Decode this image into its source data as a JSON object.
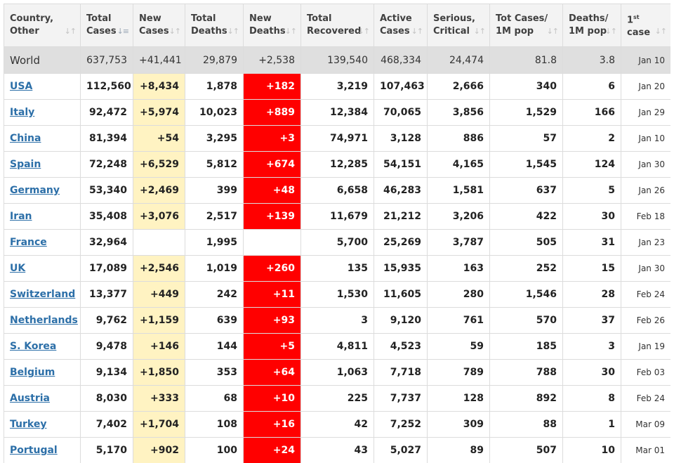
{
  "colors": {
    "new_cases_bg": "#fff3c2",
    "new_deaths_bg": "#ff0000",
    "link": "#2c6fa8",
    "world_bg": "#dfdfdf",
    "header_bg": "#f3f3f3"
  },
  "headers": [
    {
      "line1": "Country,",
      "line2": "Other",
      "sort_icon": "sort-both-icon"
    },
    {
      "line1": "Total",
      "line2": "Cases",
      "sort_icon": "sort-desc-icon",
      "active": true
    },
    {
      "line1": "New",
      "line2": "Cases",
      "sort_icon": "sort-both-icon"
    },
    {
      "line1": "Total",
      "line2": "Deaths",
      "sort_icon": "sort-both-icon"
    },
    {
      "line1": "New",
      "line2": "Deaths",
      "sort_icon": "sort-both-icon"
    },
    {
      "line1": "Total",
      "line2": "Recovered",
      "sort_icon": "sort-both-icon"
    },
    {
      "line1": "Active",
      "line2": "Cases",
      "sort_icon": "sort-both-icon"
    },
    {
      "line1": "Serious,",
      "line2": "Critical",
      "sort_icon": "sort-both-icon"
    },
    {
      "line1": "Tot Cases/",
      "line2": "1M pop",
      "sort_icon": "sort-both-icon"
    },
    {
      "line1": "Deaths/",
      "line2": "1M pop",
      "sort_icon": "sort-both-icon"
    },
    {
      "line1": "1",
      "sup": "st",
      "line2": "case",
      "sort_icon": "sort-both-icon"
    }
  ],
  "world": {
    "name": "World",
    "total_cases": "637,753",
    "new_cases": "+41,441",
    "total_deaths": "29,879",
    "new_deaths": "+2,538",
    "total_recovered": "139,540",
    "active_cases": "468,334",
    "serious_critical": "24,474",
    "tot_cases_1m": "81.8",
    "deaths_1m": "3.8",
    "first_case": "Jan 10"
  },
  "rows": [
    {
      "name": "USA",
      "total_cases": "112,560",
      "new_cases": "+8,434",
      "total_deaths": "1,878",
      "new_deaths": "+182",
      "total_recovered": "3,219",
      "active_cases": "107,463",
      "serious_critical": "2,666",
      "tot_cases_1m": "340",
      "deaths_1m": "6",
      "first_case": "Jan 20"
    },
    {
      "name": "Italy",
      "total_cases": "92,472",
      "new_cases": "+5,974",
      "total_deaths": "10,023",
      "new_deaths": "+889",
      "total_recovered": "12,384",
      "active_cases": "70,065",
      "serious_critical": "3,856",
      "tot_cases_1m": "1,529",
      "deaths_1m": "166",
      "first_case": "Jan 29"
    },
    {
      "name": "China",
      "total_cases": "81,394",
      "new_cases": "+54",
      "total_deaths": "3,295",
      "new_deaths": "+3",
      "total_recovered": "74,971",
      "active_cases": "3,128",
      "serious_critical": "886",
      "tot_cases_1m": "57",
      "deaths_1m": "2",
      "first_case": "Jan 10"
    },
    {
      "name": "Spain",
      "total_cases": "72,248",
      "new_cases": "+6,529",
      "total_deaths": "5,812",
      "new_deaths": "+674",
      "total_recovered": "12,285",
      "active_cases": "54,151",
      "serious_critical": "4,165",
      "tot_cases_1m": "1,545",
      "deaths_1m": "124",
      "first_case": "Jan 30"
    },
    {
      "name": "Germany",
      "total_cases": "53,340",
      "new_cases": "+2,469",
      "total_deaths": "399",
      "new_deaths": "+48",
      "total_recovered": "6,658",
      "active_cases": "46,283",
      "serious_critical": "1,581",
      "tot_cases_1m": "637",
      "deaths_1m": "5",
      "first_case": "Jan 26"
    },
    {
      "name": "Iran",
      "total_cases": "35,408",
      "new_cases": "+3,076",
      "total_deaths": "2,517",
      "new_deaths": "+139",
      "total_recovered": "11,679",
      "active_cases": "21,212",
      "serious_critical": "3,206",
      "tot_cases_1m": "422",
      "deaths_1m": "30",
      "first_case": "Feb 18"
    },
    {
      "name": "France",
      "total_cases": "32,964",
      "new_cases": "",
      "total_deaths": "1,995",
      "new_deaths": "",
      "total_recovered": "5,700",
      "active_cases": "25,269",
      "serious_critical": "3,787",
      "tot_cases_1m": "505",
      "deaths_1m": "31",
      "first_case": "Jan 23"
    },
    {
      "name": "UK",
      "total_cases": "17,089",
      "new_cases": "+2,546",
      "total_deaths": "1,019",
      "new_deaths": "+260",
      "total_recovered": "135",
      "active_cases": "15,935",
      "serious_critical": "163",
      "tot_cases_1m": "252",
      "deaths_1m": "15",
      "first_case": "Jan 30"
    },
    {
      "name": "Switzerland",
      "total_cases": "13,377",
      "new_cases": "+449",
      "total_deaths": "242",
      "new_deaths": "+11",
      "total_recovered": "1,530",
      "active_cases": "11,605",
      "serious_critical": "280",
      "tot_cases_1m": "1,546",
      "deaths_1m": "28",
      "first_case": "Feb 24"
    },
    {
      "name": "Netherlands",
      "total_cases": "9,762",
      "new_cases": "+1,159",
      "total_deaths": "639",
      "new_deaths": "+93",
      "total_recovered": "3",
      "active_cases": "9,120",
      "serious_critical": "761",
      "tot_cases_1m": "570",
      "deaths_1m": "37",
      "first_case": "Feb 26"
    },
    {
      "name": "S. Korea",
      "total_cases": "9,478",
      "new_cases": "+146",
      "total_deaths": "144",
      "new_deaths": "+5",
      "total_recovered": "4,811",
      "active_cases": "4,523",
      "serious_critical": "59",
      "tot_cases_1m": "185",
      "deaths_1m": "3",
      "first_case": "Jan 19"
    },
    {
      "name": "Belgium",
      "total_cases": "9,134",
      "new_cases": "+1,850",
      "total_deaths": "353",
      "new_deaths": "+64",
      "total_recovered": "1,063",
      "active_cases": "7,718",
      "serious_critical": "789",
      "tot_cases_1m": "788",
      "deaths_1m": "30",
      "first_case": "Feb 03"
    },
    {
      "name": "Austria",
      "total_cases": "8,030",
      "new_cases": "+333",
      "total_deaths": "68",
      "new_deaths": "+10",
      "total_recovered": "225",
      "active_cases": "7,737",
      "serious_critical": "128",
      "tot_cases_1m": "892",
      "deaths_1m": "8",
      "first_case": "Feb 24"
    },
    {
      "name": "Turkey",
      "total_cases": "7,402",
      "new_cases": "+1,704",
      "total_deaths": "108",
      "new_deaths": "+16",
      "total_recovered": "42",
      "active_cases": "7,252",
      "serious_critical": "309",
      "tot_cases_1m": "88",
      "deaths_1m": "1",
      "first_case": "Mar 09"
    },
    {
      "name": "Portugal",
      "total_cases": "5,170",
      "new_cases": "+902",
      "total_deaths": "100",
      "new_deaths": "+24",
      "total_recovered": "43",
      "active_cases": "5,027",
      "serious_critical": "89",
      "tot_cases_1m": "507",
      "deaths_1m": "10",
      "first_case": "Mar 01"
    }
  ]
}
